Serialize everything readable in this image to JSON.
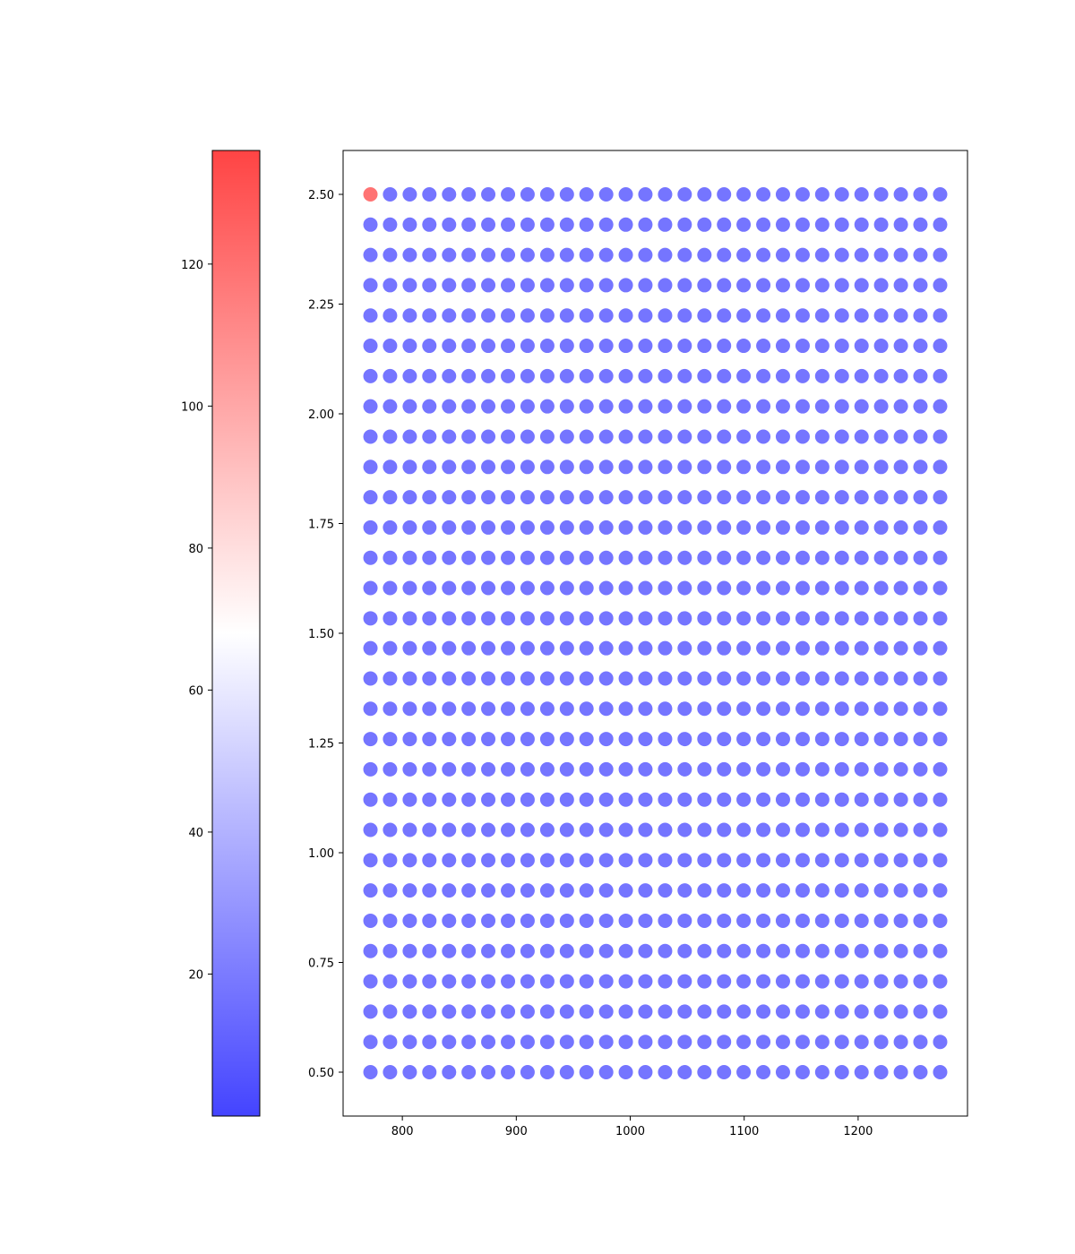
{
  "colorbar": {
    "colormap": "bwr",
    "colors": [
      "#4444ff",
      "#ffffff",
      "#ff4444"
    ],
    "range": [
      0,
      136
    ],
    "ticks": [
      20,
      40,
      60,
      80,
      100,
      120
    ],
    "tick_labels": [
      "20",
      "40",
      "60",
      "80",
      "100",
      "120"
    ]
  },
  "chart_data": {
    "type": "scatter",
    "title": "",
    "xlabel": "",
    "ylabel": "",
    "xlim": [
      748,
      1296
    ],
    "ylim": [
      0.4,
      2.6
    ],
    "x_ticks": [
      800,
      900,
      1000,
      1100,
      1200
    ],
    "x_tick_labels": [
      "800",
      "900",
      "1000",
      "1100",
      "1200"
    ],
    "y_ticks": [
      0.5,
      0.75,
      1.0,
      1.25,
      1.5,
      1.75,
      2.0,
      2.25,
      2.5
    ],
    "y_tick_labels": [
      "0.50",
      "0.75",
      "1.00",
      "1.25",
      "1.50",
      "1.75",
      "2.00",
      "2.25",
      "2.50"
    ],
    "grid": false,
    "x": [
      772,
      789.2,
      806.5,
      823.7,
      841,
      858.2,
      875.4,
      892.7,
      909.9,
      927.2,
      944.4,
      961.6,
      978.9,
      996.1,
      1013.3,
      1030.6,
      1047.8,
      1065.1,
      1082.3,
      1099.5,
      1116.8,
      1134,
      1151.3,
      1168.5,
      1185.7,
      1203,
      1220.2,
      1237.5,
      1254.7,
      1272
    ],
    "y": [
      0.5,
      0.569,
      0.638,
      0.707,
      0.776,
      0.845,
      0.914,
      0.983,
      1.052,
      1.121,
      1.19,
      1.259,
      1.328,
      1.397,
      1.466,
      1.534,
      1.603,
      1.672,
      1.741,
      1.81,
      1.879,
      1.948,
      2.017,
      2.086,
      2.155,
      2.224,
      2.293,
      2.362,
      2.431,
      2.5
    ],
    "default_value": 1,
    "highlight": {
      "x": 772,
      "y": 2.5,
      "value": 136
    },
    "marker_opacity": 0.75
  }
}
